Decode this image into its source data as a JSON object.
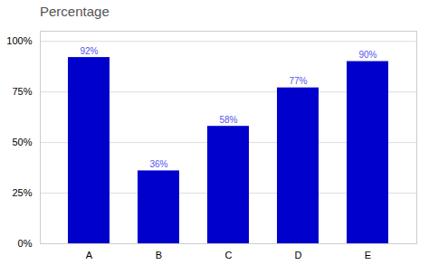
{
  "chart_data": {
    "type": "bar",
    "title": "Percentage",
    "categories": [
      "A",
      "B",
      "C",
      "D",
      "E"
    ],
    "values": [
      92,
      36,
      58,
      77,
      90
    ],
    "value_labels": [
      "92%",
      "36%",
      "58%",
      "77%",
      "90%"
    ],
    "data_labels": true,
    "color": "#0000cc",
    "ylim": [
      0,
      105
    ],
    "yticks": [
      {
        "value": 0,
        "label": "0%"
      },
      {
        "value": 25,
        "label": "25%"
      },
      {
        "value": 50,
        "label": "50%"
      },
      {
        "value": 75,
        "label": "75%"
      },
      {
        "value": 100,
        "label": "100%"
      }
    ],
    "grid": true
  }
}
